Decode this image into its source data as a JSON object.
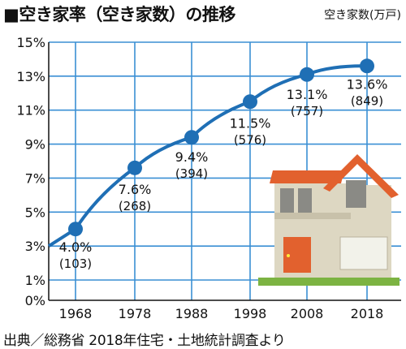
{
  "title": "■空き家率（空き家数）の推移",
  "unit_note": "空き家数(万戸)",
  "source": "出典／総務省 2018年住宅・土地統計調査より",
  "colors": {
    "line": "#1f6fb5",
    "grid": "#3a8fd4",
    "roof": "#e2612e",
    "wall": "#ddd7c2",
    "door": "#e2612e",
    "grass": "#7cb342"
  },
  "chart_data": {
    "type": "line",
    "x": [
      "1968",
      "1978",
      "1988",
      "1998",
      "2008",
      "2018"
    ],
    "categories": [
      "1968",
      "1978",
      "1988",
      "1998",
      "2008",
      "2018"
    ],
    "series": [
      {
        "values": [
          4.0,
          7.6,
          9.4,
          11.5,
          13.1,
          13.6
        ]
      }
    ],
    "labels": [
      "4.0%",
      "7.6%",
      "9.4%",
      "11.5%",
      "13.1%",
      "13.6%"
    ],
    "counts": [
      "(103)",
      "(268)",
      "(394)",
      "(576)",
      "(757)",
      "(849)"
    ],
    "y_ticks": [
      "15%",
      "13%",
      "11%",
      "9%",
      "7%",
      "5%",
      "3%",
      "1%",
      "0%"
    ],
    "ylim": [
      0,
      15
    ],
    "grid": true
  }
}
